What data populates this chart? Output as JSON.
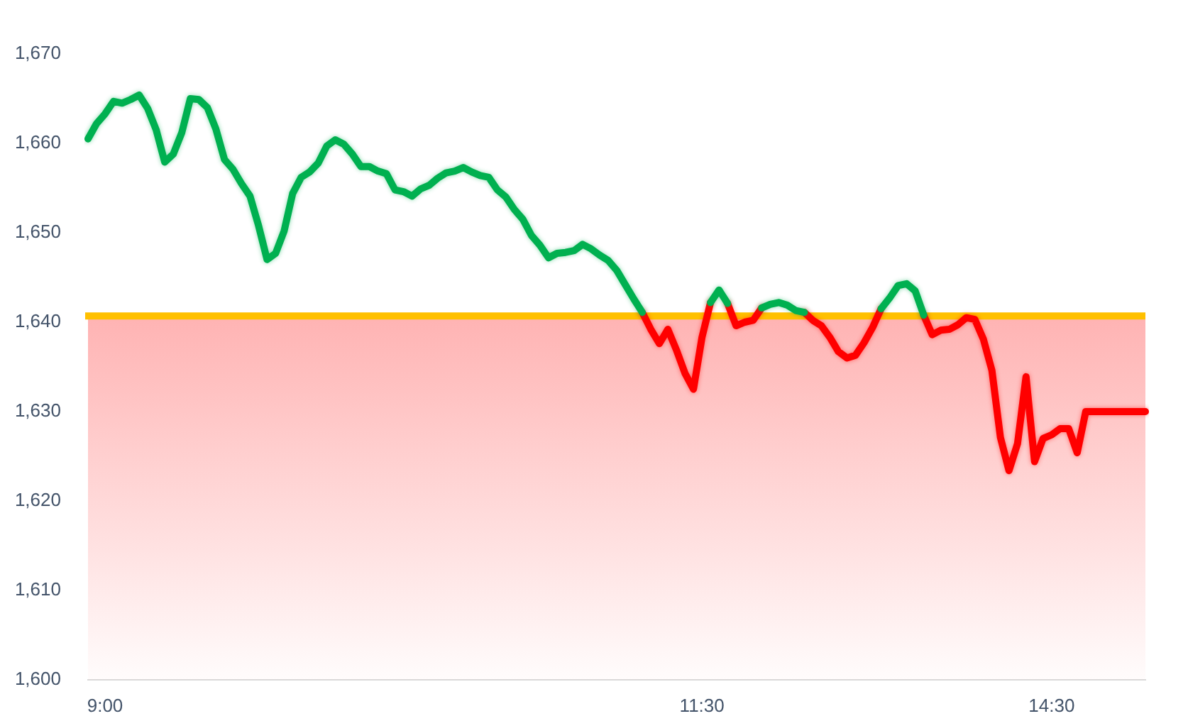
{
  "chart_data": {
    "type": "line",
    "categories": [
      null,
      null,
      "9:00",
      null,
      null,
      null,
      null,
      null,
      null,
      null,
      null,
      null,
      null,
      null,
      null,
      null,
      null,
      null,
      null,
      null,
      null,
      null,
      null,
      null,
      null,
      null,
      null,
      null,
      null,
      null,
      null,
      null,
      null,
      null,
      null,
      null,
      null,
      null,
      null,
      null,
      null,
      null,
      null,
      null,
      null,
      null,
      null,
      null,
      null,
      null,
      null,
      null,
      null,
      null,
      null,
      null,
      null,
      null,
      null,
      null,
      null,
      null,
      null,
      null,
      null,
      null,
      null,
      null,
      null,
      null,
      null,
      null,
      "11:30",
      null,
      null,
      null,
      null,
      null,
      null,
      null,
      null,
      null,
      null,
      null,
      null,
      null,
      null,
      null,
      null,
      null,
      null,
      null,
      null,
      null,
      null,
      null,
      null,
      null,
      null,
      null,
      null,
      null,
      null,
      null,
      null,
      null,
      null,
      null,
      null,
      null,
      null,
      null,
      null,
      "14:30",
      null,
      null,
      null,
      null,
      null,
      null,
      null,
      null,
      null,
      null,
      null
    ],
    "series": [
      {
        "color": "#00b050",
        "values": [
          1660.5,
          1662.2,
          1663.3,
          1664.7,
          1664.5,
          1664.9,
          1665.4,
          1663.9,
          1661.5,
          1657.9,
          1658.8,
          1661.2,
          1665.0,
          1664.9,
          1664.0,
          1661.6,
          1658.2,
          1657.1,
          1655.5,
          1654.1,
          1650.8,
          1647.0,
          1647.7,
          1650.2,
          1654.4,
          1656.2,
          1656.8,
          1657.8,
          1659.7,
          1660.4,
          1659.9,
          1658.8,
          1657.4,
          1657.4,
          1656.9,
          1656.6,
          1654.8,
          1654.6,
          1654.1,
          1654.9,
          1655.3,
          1656.1,
          1656.7,
          1656.9,
          1657.3,
          1656.8,
          1656.4,
          1656.2,
          1654.8,
          1654.0,
          1652.6,
          1651.5,
          1649.7,
          1648.6,
          1647.2,
          1647.7,
          1647.8,
          1648.0,
          1648.7,
          1648.2,
          1647.5,
          1646.9,
          1645.8,
          1644.2,
          1642.6,
          1641.1,
          null,
          null,
          null,
          null,
          null,
          null,
          null,
          1642.2,
          1643.6,
          1642.1,
          null,
          null,
          null,
          1641.6,
          1642.0,
          1642.2,
          1641.9,
          1641.3,
          1641.1,
          null,
          null,
          null,
          null,
          null,
          null,
          null,
          null,
          1641.5,
          1642.7,
          1644.1,
          1644.3,
          1643.5,
          1640.8,
          null,
          null,
          null,
          null,
          null,
          null,
          null,
          null,
          null,
          null,
          null,
          null,
          null,
          null,
          null,
          null,
          null,
          null,
          null,
          null,
          null,
          null,
          null,
          null,
          null,
          null
        ]
      },
      {
        "color": "#ff0000",
        "values": [
          null,
          null,
          null,
          null,
          null,
          null,
          null,
          null,
          null,
          null,
          null,
          null,
          null,
          null,
          null,
          null,
          null,
          null,
          null,
          null,
          null,
          null,
          null,
          null,
          null,
          null,
          null,
          null,
          null,
          null,
          null,
          null,
          null,
          null,
          null,
          null,
          null,
          null,
          null,
          null,
          null,
          null,
          null,
          null,
          null,
          null,
          null,
          null,
          null,
          null,
          null,
          null,
          null,
          null,
          null,
          null,
          null,
          null,
          null,
          null,
          null,
          null,
          null,
          null,
          null,
          1641.1,
          1639.2,
          1637.6,
          1639.2,
          1636.9,
          1634.3,
          1632.5,
          1638.3,
          1642.2,
          null,
          1642.1,
          1639.6,
          1640.0,
          1640.2,
          1641.6,
          null,
          null,
          null,
          null,
          1641.1,
          1640.2,
          1639.6,
          1638.3,
          1636.7,
          1636.0,
          1636.3,
          1637.7,
          1639.4,
          1641.5,
          null,
          null,
          null,
          null,
          1640.8,
          1638.6,
          1639.1,
          1639.2,
          1639.7,
          1640.5,
          1640.3,
          1638.1,
          1634.6,
          1627.1,
          1623.4,
          1626.4,
          1633.9,
          1624.4,
          1627.0,
          1627.4,
          1628.1,
          1628.1,
          1625.4,
          1630.0,
          1630.0,
          1630.0,
          1630.0,
          1630.0,
          1630.0,
          1630.0,
          1630.0
        ]
      }
    ],
    "ylim": [
      1600,
      1670
    ],
    "yticks": [
      {
        "value": 1600,
        "label": "1,600"
      },
      {
        "value": 1610,
        "label": "1,610"
      },
      {
        "value": 1620,
        "label": "1,620"
      },
      {
        "value": 1630,
        "label": "1,630"
      },
      {
        "value": 1640,
        "label": "1,640"
      },
      {
        "value": 1650,
        "label": "1,650"
      },
      {
        "value": 1660,
        "label": "1,660"
      },
      {
        "value": 1670,
        "label": "1,670"
      }
    ],
    "ref_lines": [
      {
        "axis": "y",
        "value": 1640.7,
        "color": "#ffc000"
      }
    ],
    "bands": [
      {
        "axis": "y",
        "from": 1600,
        "to": 1640.7,
        "color": "#ffb3b3"
      }
    ]
  }
}
